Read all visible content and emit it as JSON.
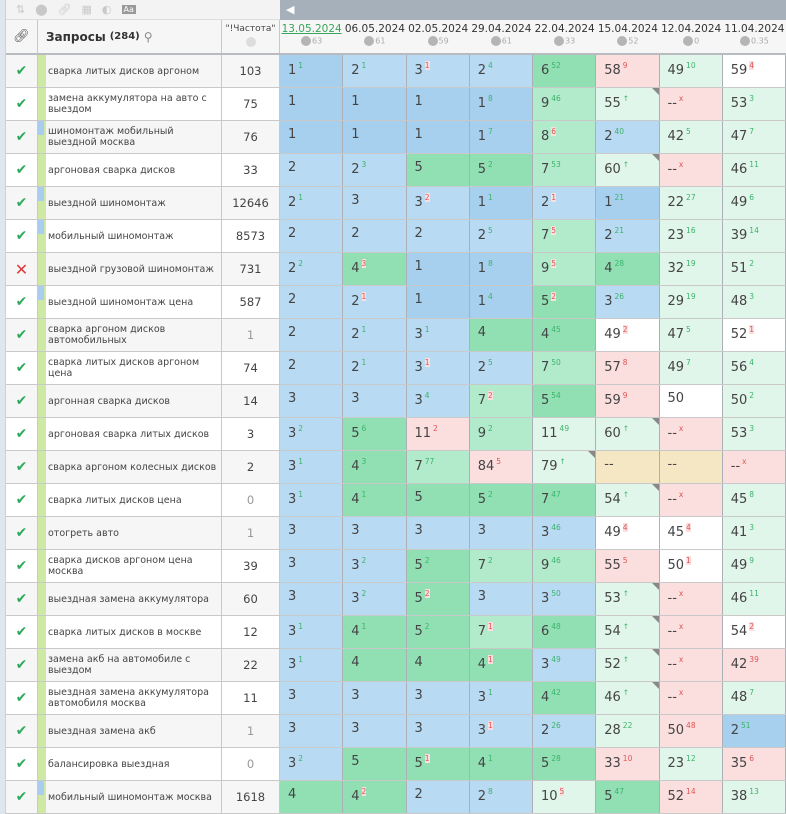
{
  "toolbar": {
    "icons": [
      "sort-icon",
      "toggle-icon",
      "link-icon",
      "calculator-icon",
      "contrast-icon",
      "font-icon"
    ],
    "font_label": "Aa"
  },
  "header": {
    "queries_label": "Запросы",
    "queries_count": "(284)",
    "freq_label": "\"!Частота\"",
    "dates": [
      {
        "date": "13.05.2024",
        "pct": "63",
        "active": true
      },
      {
        "date": "06.05.2024",
        "pct": "61"
      },
      {
        "date": "02.05.2024",
        "pct": "59"
      },
      {
        "date": "29.04.2024",
        "pct": "61"
      },
      {
        "date": "22.04.2024",
        "pct": "33"
      },
      {
        "date": "15.04.2024",
        "pct": "52"
      },
      {
        "date": "12.04.2024",
        "pct": "0"
      },
      {
        "date": "11.04.2024",
        "pct": "0.35"
      }
    ]
  },
  "legend": {
    "bg": {
      "b1": "#a7d0ee",
      "b2": "#b8daf3",
      "g1": "#91e0b4",
      "g2": "#b2ebcc",
      "g3": "#e1f6ea",
      "r": "#fbdede",
      "w": "#ffffff",
      "y": "#f6e7c4"
    }
  },
  "rows": [
    {
      "q": "сварка литых дисков аргоном",
      "f": "103",
      "ok": true,
      "c": [
        [
          "1",
          "1",
          "g",
          "b1"
        ],
        [
          "2",
          "1",
          "g",
          "b2"
        ],
        [
          "3",
          "1",
          "r",
          "b2"
        ],
        [
          "2",
          "4",
          "g",
          "b2"
        ],
        [
          "6",
          "52",
          "g",
          "g1"
        ],
        [
          "58",
          "9",
          "r",
          "r"
        ],
        [
          "49",
          "10",
          "g",
          "g3"
        ],
        [
          "59",
          "4",
          "r",
          "w"
        ]
      ]
    },
    {
      "q": "замена аккумулятора на авто с выездом",
      "f": "75",
      "ok": true,
      "c": [
        [
          "1",
          "",
          "",
          "b1"
        ],
        [
          "1",
          "",
          "",
          "b1"
        ],
        [
          "1",
          "",
          "",
          "b1"
        ],
        [
          "1",
          "8",
          "g",
          "b1"
        ],
        [
          "9",
          "46",
          "g",
          "g2"
        ],
        [
          "55",
          "↑",
          "g",
          "g3",
          1
        ],
        [
          "--",
          "x",
          "r",
          "r"
        ],
        [
          "53",
          "3",
          "g",
          "g3"
        ]
      ]
    },
    {
      "q": "шиномонтаж мобильный выездной москва",
      "f": "76",
      "ok": true,
      "mk": true,
      "c": [
        [
          "1",
          "",
          "",
          "b1"
        ],
        [
          "1",
          "",
          "",
          "b1"
        ],
        [
          "1",
          "",
          "",
          "b1"
        ],
        [
          "1",
          "7",
          "g",
          "b1"
        ],
        [
          "8",
          "6",
          "r",
          "g2"
        ],
        [
          "2",
          "40",
          "g",
          "b2"
        ],
        [
          "42",
          "5",
          "g",
          "g3"
        ],
        [
          "47",
          "7",
          "g",
          "g3"
        ]
      ]
    },
    {
      "q": "аргоновая сварка дисков",
      "f": "33",
      "ok": true,
      "c": [
        [
          "2",
          "",
          "",
          "b2"
        ],
        [
          "2",
          "3",
          "g",
          "b2"
        ],
        [
          "5",
          "",
          "",
          "g1"
        ],
        [
          "5",
          "2",
          "g",
          "g1"
        ],
        [
          "7",
          "53",
          "g",
          "g2"
        ],
        [
          "60",
          "↑",
          "g",
          "g3",
          1
        ],
        [
          "--",
          "x",
          "r",
          "r"
        ],
        [
          "46",
          "11",
          "g",
          "g3"
        ]
      ]
    },
    {
      "q": "выездной шиномонтаж",
      "f": "12646",
      "ok": true,
      "mk": true,
      "c": [
        [
          "2",
          "1",
          "g",
          "b2"
        ],
        [
          "3",
          "",
          "",
          "b2"
        ],
        [
          "3",
          "2",
          "r",
          "b2"
        ],
        [
          "1",
          "1",
          "g",
          "b1"
        ],
        [
          "2",
          "1",
          "r",
          "b2"
        ],
        [
          "1",
          "21",
          "g",
          "b1"
        ],
        [
          "22",
          "27",
          "g",
          "g3"
        ],
        [
          "49",
          "6",
          "g",
          "g3"
        ]
      ]
    },
    {
      "q": "мобильный шиномонтаж",
      "f": "8573",
      "ok": true,
      "mk": true,
      "c": [
        [
          "2",
          "",
          "",
          "b2"
        ],
        [
          "2",
          "",
          "",
          "b2"
        ],
        [
          "2",
          "",
          "",
          "b2"
        ],
        [
          "2",
          "5",
          "g",
          "b2"
        ],
        [
          "7",
          "5",
          "r",
          "g2"
        ],
        [
          "2",
          "21",
          "g",
          "b2"
        ],
        [
          "23",
          "16",
          "g",
          "g3"
        ],
        [
          "39",
          "14",
          "g",
          "g3"
        ]
      ]
    },
    {
      "q": "выездной грузовой шиномонтаж",
      "f": "731",
      "ok": false,
      "c": [
        [
          "2",
          "2",
          "g",
          "b2"
        ],
        [
          "4",
          "3",
          "r",
          "g1"
        ],
        [
          "1",
          "",
          "",
          "b1"
        ],
        [
          "1",
          "8",
          "g",
          "b1"
        ],
        [
          "9",
          "5",
          "r",
          "g2"
        ],
        [
          "4",
          "28",
          "g",
          "g1"
        ],
        [
          "32",
          "19",
          "g",
          "g3"
        ],
        [
          "51",
          "2",
          "g",
          "g3"
        ]
      ]
    },
    {
      "q": "выездной шиномонтаж цена",
      "f": "587",
      "ok": true,
      "mk": true,
      "c": [
        [
          "2",
          "",
          "",
          "b2"
        ],
        [
          "2",
          "1",
          "r",
          "b2"
        ],
        [
          "1",
          "",
          "",
          "b1"
        ],
        [
          "1",
          "4",
          "g",
          "b1"
        ],
        [
          "5",
          "2",
          "r",
          "g1"
        ],
        [
          "3",
          "26",
          "g",
          "b2"
        ],
        [
          "29",
          "19",
          "g",
          "g3"
        ],
        [
          "48",
          "3",
          "g",
          "g3"
        ]
      ]
    },
    {
      "q": "сварка аргоном дисков автомобильных",
      "f": "1",
      "dim": true,
      "ok": true,
      "c": [
        [
          "2",
          "",
          "",
          "b2"
        ],
        [
          "2",
          "1",
          "g",
          "b2"
        ],
        [
          "3",
          "1",
          "g",
          "b2"
        ],
        [
          "4",
          "",
          "",
          "g1"
        ],
        [
          "4",
          "45",
          "g",
          "g1"
        ],
        [
          "49",
          "2",
          "r",
          "w"
        ],
        [
          "47",
          "5",
          "g",
          "g3"
        ],
        [
          "52",
          "1",
          "r",
          "w"
        ]
      ]
    },
    {
      "q": "сварка литых дисков аргоном цена",
      "f": "74",
      "ok": true,
      "c": [
        [
          "2",
          "",
          "",
          "b2"
        ],
        [
          "2",
          "1",
          "g",
          "b2"
        ],
        [
          "3",
          "1",
          "r",
          "b2"
        ],
        [
          "2",
          "5",
          "g",
          "b2"
        ],
        [
          "7",
          "50",
          "g",
          "g2"
        ],
        [
          "57",
          "8",
          "r",
          "r"
        ],
        [
          "49",
          "7",
          "g",
          "g3"
        ],
        [
          "56",
          "4",
          "g",
          "g3"
        ]
      ]
    },
    {
      "q": "аргонная сварка дисков",
      "f": "14",
      "ok": true,
      "c": [
        [
          "3",
          "",
          "",
          "b2"
        ],
        [
          "3",
          "",
          "",
          "b2"
        ],
        [
          "3",
          "4",
          "g",
          "b2"
        ],
        [
          "7",
          "2",
          "r",
          "g2"
        ],
        [
          "5",
          "54",
          "g",
          "g1"
        ],
        [
          "59",
          "9",
          "r",
          "r"
        ],
        [
          "50",
          "",
          "",
          "w"
        ],
        [
          "50",
          "2",
          "g",
          "g3"
        ]
      ]
    },
    {
      "q": "аргоновая сварка литых дисков",
      "f": "3",
      "ok": true,
      "c": [
        [
          "3",
          "2",
          "g",
          "b2"
        ],
        [
          "5",
          "6",
          "g",
          "g1"
        ],
        [
          "11",
          "2",
          "r",
          "r"
        ],
        [
          "9",
          "2",
          "g",
          "g2"
        ],
        [
          "11",
          "49",
          "g",
          "g3"
        ],
        [
          "60",
          "↑",
          "g",
          "g3",
          1
        ],
        [
          "--",
          "x",
          "r",
          "r"
        ],
        [
          "53",
          "3",
          "g",
          "g3"
        ]
      ]
    },
    {
      "q": "сварка аргоном колесных дисков",
      "f": "2",
      "ok": true,
      "c": [
        [
          "3",
          "1",
          "g",
          "b2"
        ],
        [
          "4",
          "3",
          "g",
          "g1"
        ],
        [
          "7",
          "77",
          "g",
          "g2"
        ],
        [
          "84",
          "5",
          "r",
          "r"
        ],
        [
          "79",
          "↑",
          "g",
          "g3",
          1
        ],
        [
          "--",
          "",
          "",
          "y"
        ],
        [
          "--",
          "",
          "",
          "y"
        ],
        [
          "--",
          "x",
          "r",
          "r"
        ]
      ]
    },
    {
      "q": "сварка литых дисков цена",
      "f": "0",
      "dim": true,
      "ok": true,
      "c": [
        [
          "3",
          "1",
          "g",
          "b2"
        ],
        [
          "4",
          "1",
          "g",
          "g1"
        ],
        [
          "5",
          "",
          "",
          "g1"
        ],
        [
          "5",
          "2",
          "g",
          "g1"
        ],
        [
          "7",
          "47",
          "g",
          "g1"
        ],
        [
          "54",
          "↑",
          "g",
          "g3",
          1
        ],
        [
          "--",
          "x",
          "r",
          "r"
        ],
        [
          "45",
          "8",
          "g",
          "g3"
        ]
      ]
    },
    {
      "q": "отогреть авто",
      "f": "1",
      "dim": true,
      "ok": true,
      "c": [
        [
          "3",
          "",
          "",
          "b2"
        ],
        [
          "3",
          "",
          "",
          "b2"
        ],
        [
          "3",
          "",
          "",
          "b2"
        ],
        [
          "3",
          "",
          "",
          "b2"
        ],
        [
          "3",
          "46",
          "g",
          "b2"
        ],
        [
          "49",
          "4",
          "r",
          "w"
        ],
        [
          "45",
          "4",
          "r",
          "w"
        ],
        [
          "41",
          "3",
          "g",
          "g3"
        ]
      ]
    },
    {
      "q": "сварка дисков аргоном цена москва",
      "f": "39",
      "ok": true,
      "c": [
        [
          "3",
          "",
          "",
          "b2"
        ],
        [
          "3",
          "2",
          "g",
          "b2"
        ],
        [
          "5",
          "2",
          "g",
          "g1"
        ],
        [
          "7",
          "2",
          "g",
          "g2"
        ],
        [
          "9",
          "46",
          "g",
          "g2"
        ],
        [
          "55",
          "5",
          "r",
          "r"
        ],
        [
          "50",
          "1",
          "r",
          "w"
        ],
        [
          "49",
          "9",
          "g",
          "g3"
        ]
      ]
    },
    {
      "q": "выездная замена аккумулятора",
      "f": "60",
      "ok": true,
      "c": [
        [
          "3",
          "",
          "",
          "b2"
        ],
        [
          "3",
          "2",
          "g",
          "b2"
        ],
        [
          "5",
          "2",
          "r",
          "g1"
        ],
        [
          "3",
          "",
          "",
          "b2"
        ],
        [
          "3",
          "50",
          "g",
          "b2"
        ],
        [
          "53",
          "↑",
          "g",
          "g3",
          1
        ],
        [
          "--",
          "x",
          "r",
          "r"
        ],
        [
          "46",
          "11",
          "g",
          "g3"
        ]
      ]
    },
    {
      "q": "сварка литых дисков в москве",
      "f": "12",
      "ok": true,
      "c": [
        [
          "3",
          "1",
          "g",
          "b2"
        ],
        [
          "4",
          "1",
          "g",
          "g1"
        ],
        [
          "5",
          "2",
          "g",
          "g1"
        ],
        [
          "7",
          "1",
          "r",
          "g2"
        ],
        [
          "6",
          "48",
          "g",
          "g1"
        ],
        [
          "54",
          "↑",
          "g",
          "g3",
          1
        ],
        [
          "--",
          "x",
          "r",
          "r"
        ],
        [
          "54",
          "2",
          "r",
          "w"
        ]
      ]
    },
    {
      "q": "замена акб на автомобиле с выездом",
      "f": "22",
      "ok": true,
      "c": [
        [
          "3",
          "1",
          "g",
          "b2"
        ],
        [
          "4",
          "",
          "",
          "g1"
        ],
        [
          "4",
          "",
          "",
          "g1"
        ],
        [
          "4",
          "1",
          "r",
          "g1"
        ],
        [
          "3",
          "49",
          "g",
          "b2"
        ],
        [
          "52",
          "↑",
          "g",
          "g3",
          1
        ],
        [
          "--",
          "x",
          "r",
          "r"
        ],
        [
          "42",
          "39",
          "r",
          "r"
        ]
      ]
    },
    {
      "q": "выездная замена аккумулятора автомобиля москва",
      "f": "11",
      "ok": true,
      "c": [
        [
          "3",
          "",
          "",
          "b2"
        ],
        [
          "3",
          "",
          "",
          "b2"
        ],
        [
          "3",
          "",
          "",
          "b2"
        ],
        [
          "3",
          "1",
          "g",
          "b2"
        ],
        [
          "4",
          "42",
          "g",
          "g1"
        ],
        [
          "46",
          "↑",
          "g",
          "g3",
          1
        ],
        [
          "--",
          "x",
          "r",
          "r"
        ],
        [
          "48",
          "7",
          "g",
          "g3"
        ]
      ]
    },
    {
      "q": "выездная замена акб",
      "f": "1",
      "dim": true,
      "ok": true,
      "c": [
        [
          "3",
          "",
          "",
          "b2"
        ],
        [
          "3",
          "",
          "",
          "b2"
        ],
        [
          "3",
          "",
          "",
          "b2"
        ],
        [
          "3",
          "1",
          "r",
          "b2"
        ],
        [
          "2",
          "26",
          "g",
          "b2"
        ],
        [
          "28",
          "22",
          "g",
          "g3"
        ],
        [
          "50",
          "48",
          "r",
          "r"
        ],
        [
          "2",
          "51",
          "g",
          "b1"
        ]
      ]
    },
    {
      "q": "балансировка выездная",
      "f": "0",
      "dim": true,
      "ok": true,
      "c": [
        [
          "3",
          "2",
          "g",
          "b2"
        ],
        [
          "5",
          "",
          "",
          "g1"
        ],
        [
          "5",
          "1",
          "r",
          "g1"
        ],
        [
          "4",
          "1",
          "g",
          "g1"
        ],
        [
          "5",
          "28",
          "g",
          "g1"
        ],
        [
          "33",
          "10",
          "r",
          "r"
        ],
        [
          "23",
          "12",
          "g",
          "g3"
        ],
        [
          "35",
          "6",
          "r",
          "r"
        ]
      ]
    },
    {
      "q": "мобильный шиномонтаж москва",
      "f": "1618",
      "ok": true,
      "mk": true,
      "c": [
        [
          "4",
          "",
          "",
          "g1"
        ],
        [
          "4",
          "2",
          "r",
          "g1"
        ],
        [
          "2",
          "",
          "",
          "b2"
        ],
        [
          "2",
          "8",
          "g",
          "b2"
        ],
        [
          "10",
          "5",
          "r",
          "g3"
        ],
        [
          "5",
          "47",
          "g",
          "g1"
        ],
        [
          "52",
          "14",
          "r",
          "r"
        ],
        [
          "38",
          "13",
          "g",
          "g3"
        ]
      ]
    }
  ]
}
